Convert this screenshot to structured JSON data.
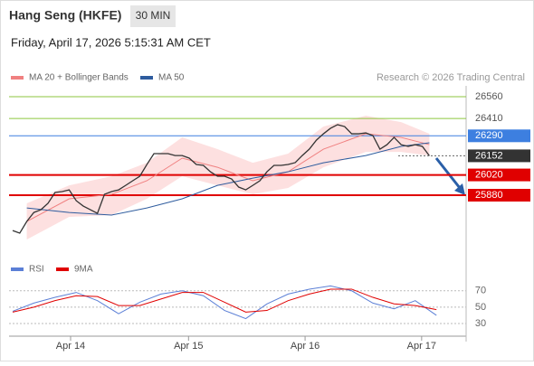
{
  "header": {
    "title": "Hang Seng (HKFE)",
    "timeframe": "30 MIN",
    "datetime": "Friday, April 17, 2026 5:15:31 AM CET",
    "credit": "Research © 2026 Trading Central"
  },
  "chart_data": [
    {
      "type": "line",
      "xlim": [
        0,
        64.2
      ],
      "ylim": [
        25512,
        26635
      ],
      "price": {
        "color": "#333333",
        "x": [
          0,
          1,
          2,
          3,
          4,
          5,
          6,
          7,
          8,
          9,
          10,
          11,
          12,
          13,
          14,
          15,
          16,
          17,
          18,
          19,
          20,
          21,
          22,
          23,
          24,
          25,
          26,
          27,
          28,
          29,
          30,
          31,
          32,
          33,
          34,
          35,
          36,
          37,
          38,
          39,
          40,
          41,
          42,
          43,
          44,
          45,
          46,
          47,
          48,
          49,
          50,
          51,
          52,
          53,
          54,
          55,
          56,
          57,
          58,
          59
        ],
        "values": [
          25636,
          25618,
          25699,
          25761,
          25780,
          25824,
          25899,
          25905,
          25917,
          25842,
          25805,
          25780,
          25755,
          25886,
          25905,
          25917,
          25948,
          25980,
          26011,
          26092,
          26167,
          26167,
          26167,
          26154,
          26154,
          26136,
          26092,
          26086,
          26042,
          26011,
          26011,
          25992,
          25936,
          25917,
          25948,
          25980,
          26042,
          26086,
          26086,
          26092,
          26105,
          26154,
          26198,
          26260,
          26304,
          26342,
          26367,
          26354,
          26304,
          26304,
          26310,
          26292,
          26198,
          26229,
          26279,
          26229,
          26217,
          26229,
          26217,
          26152
        ]
      },
      "band": {
        "color": "#fde0e0",
        "x": [
          2,
          8,
          14,
          19,
          24,
          29,
          34,
          39,
          44,
          50,
          55,
          59
        ],
        "upper": [
          25824,
          25948,
          26011,
          26104,
          26279,
          26198,
          26104,
          26167,
          26354,
          26429,
          26385,
          26304
        ],
        "lower": [
          25574,
          25730,
          25743,
          25855,
          26011,
          25948,
          25886,
          25930,
          26073,
          26179,
          26179,
          26154
        ]
      },
      "series": [
        {
          "name": "MA 20 + Bollinger Bands",
          "color": "#f08080",
          "x": [
            2,
            8,
            14,
            19,
            24,
            29,
            34,
            39,
            44,
            50,
            55,
            59
          ],
          "values": [
            25699,
            25855,
            25886,
            25980,
            26136,
            26073,
            25980,
            26042,
            26198,
            26304,
            26279,
            26229
          ]
        },
        {
          "name": "MA 50",
          "color": "#2e5c9e",
          "x": [
            2,
            8,
            14,
            19,
            24,
            29,
            34,
            39,
            44,
            50,
            55,
            59
          ],
          "values": [
            25792,
            25761,
            25743,
            25792,
            25855,
            25948,
            25998,
            26042,
            26104,
            26154,
            26217,
            26242
          ]
        }
      ],
      "levels": [
        {
          "value": 26560,
          "color": "#8cc63f",
          "label_box": false
        },
        {
          "value": 26410,
          "color": "#8cc63f",
          "label_box": false
        },
        {
          "value": 26290,
          "color": "#3d7fe0",
          "label_box": true
        },
        {
          "value": 26020,
          "color": "#e00000",
          "label_box": true
        },
        {
          "value": 25880,
          "color": "#e00000",
          "label_box": true
        }
      ],
      "last": {
        "value": 26152,
        "color": "#333333"
      }
    },
    {
      "type": "line",
      "xlim": [
        0,
        64.2
      ],
      "ylim": [
        19,
        83
      ],
      "yticks": [
        30,
        50,
        70
      ],
      "xticks": [
        {
          "value": 8.2,
          "label": "Apr 14"
        },
        {
          "value": 24.9,
          "label": "Apr 15"
        },
        {
          "value": 41.4,
          "label": "Apr 16"
        },
        {
          "value": 57.9,
          "label": "Apr 17"
        }
      ],
      "series": [
        {
          "name": "RSI",
          "color": "#5b7fd6",
          "x": [
            0,
            3,
            6,
            9,
            12,
            15,
            18,
            21,
            24,
            27,
            30,
            33,
            36,
            39,
            42,
            45,
            48,
            51,
            54,
            57,
            60
          ],
          "values": [
            45,
            55,
            62,
            68,
            58,
            42,
            56,
            66,
            70,
            64,
            46,
            36,
            54,
            66,
            72,
            76,
            70,
            55,
            48,
            58,
            40
          ]
        },
        {
          "name": "9MA",
          "color": "#e00000",
          "x": [
            0,
            3,
            6,
            9,
            12,
            15,
            18,
            21,
            24,
            27,
            30,
            33,
            36,
            39,
            42,
            45,
            48,
            51,
            54,
            57,
            60
          ],
          "values": [
            44,
            50,
            58,
            64,
            63,
            52,
            52,
            60,
            68,
            68,
            56,
            44,
            46,
            58,
            66,
            72,
            72,
            62,
            54,
            52,
            47
          ]
        }
      ]
    }
  ]
}
